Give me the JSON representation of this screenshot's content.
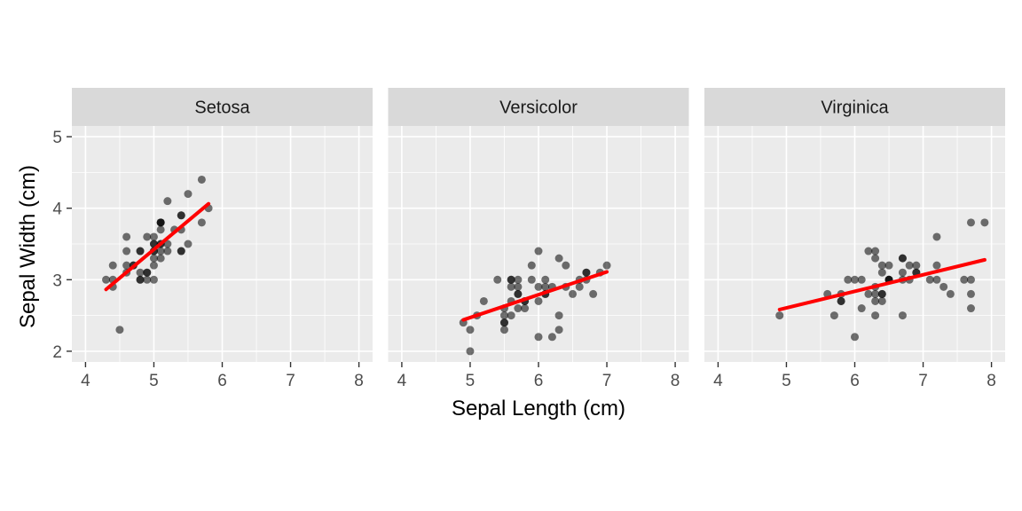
{
  "chart_data": {
    "type": "scatter",
    "title": "",
    "xlabel": "Sepal Length (cm)",
    "ylabel": "Sepal Width (cm)",
    "x_ticks": [
      4,
      5,
      6,
      7,
      8
    ],
    "y_ticks": [
      2,
      3,
      4,
      5
    ],
    "x_range": [
      3.8,
      8.2
    ],
    "y_range": [
      1.85,
      5.15
    ],
    "grid": "on",
    "legend": "none",
    "trend": "linear_regression_per_facet",
    "point_color": "#000000",
    "point_opacity": 0.55,
    "trend_line_color": "#ff0000",
    "panel_bg": "#ebebeb",
    "strip_bg": "#d9d9d9",
    "grid_color": "#ffffff",
    "facets": [
      {
        "label": "Setosa",
        "points": [
          [
            5.1,
            3.5
          ],
          [
            4.9,
            3.0
          ],
          [
            4.7,
            3.2
          ],
          [
            4.6,
            3.1
          ],
          [
            5.0,
            3.6
          ],
          [
            5.4,
            3.9
          ],
          [
            4.6,
            3.4
          ],
          [
            5.0,
            3.4
          ],
          [
            4.4,
            2.9
          ],
          [
            4.9,
            3.1
          ],
          [
            5.4,
            3.7
          ],
          [
            4.8,
            3.4
          ],
          [
            4.8,
            3.0
          ],
          [
            4.3,
            3.0
          ],
          [
            5.8,
            4.0
          ],
          [
            5.7,
            4.4
          ],
          [
            5.4,
            3.9
          ],
          [
            5.1,
            3.5
          ],
          [
            5.7,
            3.8
          ],
          [
            5.1,
            3.8
          ],
          [
            5.4,
            3.4
          ],
          [
            5.1,
            3.7
          ],
          [
            4.6,
            3.6
          ],
          [
            5.1,
            3.3
          ],
          [
            4.8,
            3.4
          ],
          [
            5.0,
            3.0
          ],
          [
            5.0,
            3.4
          ],
          [
            5.2,
            3.5
          ],
          [
            5.2,
            3.4
          ],
          [
            4.7,
            3.2
          ],
          [
            4.8,
            3.1
          ],
          [
            5.4,
            3.4
          ],
          [
            5.2,
            4.1
          ],
          [
            5.5,
            4.2
          ],
          [
            4.9,
            3.1
          ],
          [
            5.0,
            3.2
          ],
          [
            5.5,
            3.5
          ],
          [
            4.9,
            3.6
          ],
          [
            4.4,
            3.0
          ],
          [
            5.1,
            3.4
          ],
          [
            5.0,
            3.5
          ],
          [
            4.5,
            2.3
          ],
          [
            4.4,
            3.2
          ],
          [
            5.0,
            3.5
          ],
          [
            5.1,
            3.8
          ],
          [
            4.8,
            3.0
          ],
          [
            5.1,
            3.8
          ],
          [
            4.6,
            3.2
          ],
          [
            5.3,
            3.7
          ],
          [
            5.0,
            3.3
          ]
        ]
      },
      {
        "label": "Versicolor",
        "points": [
          [
            7.0,
            3.2
          ],
          [
            6.4,
            3.2
          ],
          [
            6.9,
            3.1
          ],
          [
            5.5,
            2.3
          ],
          [
            6.5,
            2.8
          ],
          [
            5.7,
            2.8
          ],
          [
            6.3,
            3.3
          ],
          [
            4.9,
            2.4
          ],
          [
            6.6,
            2.9
          ],
          [
            5.2,
            2.7
          ],
          [
            5.0,
            2.0
          ],
          [
            5.9,
            3.0
          ],
          [
            6.0,
            2.2
          ],
          [
            6.1,
            2.9
          ],
          [
            5.6,
            2.9
          ],
          [
            6.7,
            3.1
          ],
          [
            5.6,
            3.0
          ],
          [
            5.8,
            2.7
          ],
          [
            6.2,
            2.2
          ],
          [
            5.6,
            2.5
          ],
          [
            5.9,
            3.2
          ],
          [
            6.1,
            2.8
          ],
          [
            6.3,
            2.5
          ],
          [
            6.1,
            2.8
          ],
          [
            6.4,
            2.9
          ],
          [
            6.6,
            3.0
          ],
          [
            6.8,
            2.8
          ],
          [
            6.7,
            3.0
          ],
          [
            6.0,
            2.9
          ],
          [
            5.7,
            2.6
          ],
          [
            5.5,
            2.4
          ],
          [
            5.5,
            2.4
          ],
          [
            5.8,
            2.7
          ],
          [
            6.0,
            2.7
          ],
          [
            5.4,
            3.0
          ],
          [
            6.0,
            3.4
          ],
          [
            6.7,
            3.1
          ],
          [
            6.3,
            2.3
          ],
          [
            5.6,
            3.0
          ],
          [
            5.5,
            2.5
          ],
          [
            5.5,
            2.6
          ],
          [
            6.1,
            3.0
          ],
          [
            5.8,
            2.6
          ],
          [
            5.0,
            2.3
          ],
          [
            5.6,
            2.7
          ],
          [
            5.7,
            3.0
          ],
          [
            5.7,
            2.9
          ],
          [
            6.2,
            2.9
          ],
          [
            5.1,
            2.5
          ],
          [
            5.7,
            2.8
          ]
        ]
      },
      {
        "label": "Virginica",
        "points": [
          [
            6.3,
            3.3
          ],
          [
            5.8,
            2.7
          ],
          [
            7.1,
            3.0
          ],
          [
            6.3,
            2.9
          ],
          [
            6.5,
            3.0
          ],
          [
            7.6,
            3.0
          ],
          [
            4.9,
            2.5
          ],
          [
            7.3,
            2.9
          ],
          [
            6.7,
            2.5
          ],
          [
            7.2,
            3.6
          ],
          [
            6.5,
            3.2
          ],
          [
            6.4,
            2.7
          ],
          [
            6.8,
            3.0
          ],
          [
            5.7,
            2.5
          ],
          [
            5.8,
            2.8
          ],
          [
            6.4,
            3.2
          ],
          [
            6.5,
            3.0
          ],
          [
            7.7,
            3.8
          ],
          [
            7.7,
            2.6
          ],
          [
            6.0,
            2.2
          ],
          [
            6.9,
            3.2
          ],
          [
            5.6,
            2.8
          ],
          [
            7.7,
            2.8
          ],
          [
            6.3,
            2.7
          ],
          [
            6.7,
            3.3
          ],
          [
            7.2,
            3.2
          ],
          [
            6.2,
            2.8
          ],
          [
            6.1,
            3.0
          ],
          [
            6.4,
            2.8
          ],
          [
            7.2,
            3.0
          ],
          [
            7.4,
            2.8
          ],
          [
            7.9,
            3.8
          ],
          [
            6.4,
            2.8
          ],
          [
            6.3,
            2.8
          ],
          [
            6.1,
            2.6
          ],
          [
            7.7,
            3.0
          ],
          [
            6.3,
            3.4
          ],
          [
            6.4,
            3.1
          ],
          [
            6.0,
            3.0
          ],
          [
            6.9,
            3.1
          ],
          [
            6.7,
            3.1
          ],
          [
            6.9,
            3.1
          ],
          [
            5.8,
            2.7
          ],
          [
            6.8,
            3.2
          ],
          [
            6.7,
            3.3
          ],
          [
            6.7,
            3.0
          ],
          [
            6.3,
            2.5
          ],
          [
            6.5,
            3.0
          ],
          [
            6.2,
            3.4
          ],
          [
            5.9,
            3.0
          ]
        ]
      }
    ]
  }
}
